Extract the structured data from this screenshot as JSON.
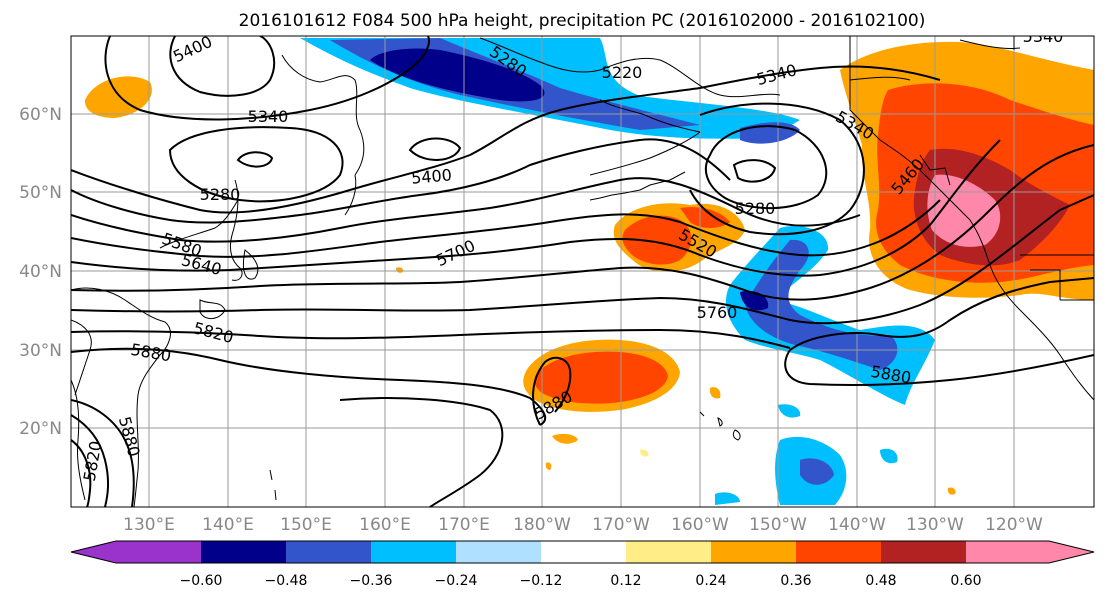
{
  "title": "2016101612 F084 500 hPa height, precipitation PC (2016102000 - 2016102100)",
  "lat_labels": [
    "60°N",
    "50°N",
    "40°N",
    "30°N",
    "20°N"
  ],
  "lon_labels": [
    "130°E",
    "140°E",
    "150°E",
    "160°E",
    "170°E",
    "180°W",
    "170°W",
    "160°W",
    "150°W",
    "140°W",
    "130°W",
    "120°W"
  ],
  "colorbar": {
    "colors": [
      "#9933cc",
      "#00008b",
      "#3355cc",
      "#00bfff",
      "#b0e0ff",
      "#ffffff",
      "#ffee88",
      "#ffa500",
      "#ff4500",
      "#b22222",
      "#ff88aa"
    ],
    "tick_labels": [
      "−0.60",
      "−0.48",
      "−0.36",
      "−0.24",
      "−0.12",
      "0.12",
      "0.24",
      "0.36",
      "0.48",
      "0.60"
    ]
  },
  "contour_labels": [
    "5400",
    "5340",
    "5280",
    "5400",
    "5340",
    "5280",
    "5220",
    "5340",
    "5340",
    "5460",
    "5280",
    "5520",
    "5580",
    "5640",
    "5700",
    "5760",
    "5820",
    "5880",
    "5880",
    "5880",
    "5880",
    "5820"
  ],
  "colors": {
    "grid": "#9a9a9a",
    "axis_label": "#888888"
  }
}
